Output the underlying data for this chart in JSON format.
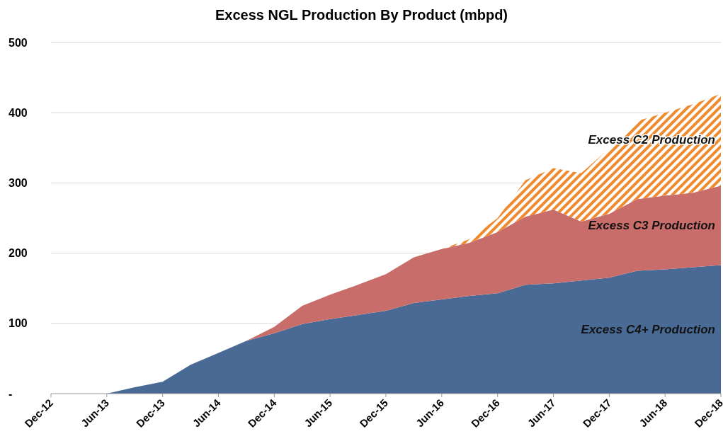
{
  "chart_data": {
    "type": "area",
    "title": "Excess NGL Production By Product (mbpd)",
    "stacked": true,
    "grid": "y",
    "categories": [
      "Dec-12",
      null,
      "Jun-13",
      null,
      "Dec-13",
      null,
      "Jun-14",
      null,
      "Dec-14",
      null,
      "Jun-15",
      null,
      "Dec-15",
      null,
      "Jun-16",
      null,
      "Dec-16",
      null,
      "Jun-17",
      null,
      "Dec-17",
      null,
      "Jun-18",
      null,
      "Dec-18"
    ],
    "ylim": [
      0,
      500
    ],
    "yticks": [
      {
        "value": 0,
        "label": "-"
      },
      100,
      200,
      300,
      400,
      500
    ],
    "series": [
      {
        "name": "Excess C4+ Production",
        "color": "#4a6a96",
        "values": [
          0,
          0,
          0,
          9,
          17,
          41,
          58,
          75,
          86,
          99,
          106,
          112,
          118,
          129,
          134,
          139,
          143,
          155,
          157,
          161,
          165,
          175,
          177,
          180,
          183
        ]
      },
      {
        "name": "Excess C3 Production",
        "color": "#c96d6a",
        "values": [
          0,
          0,
          0,
          0,
          0,
          0,
          0,
          0,
          9,
          26,
          35,
          43,
          52,
          65,
          72,
          76,
          87,
          97,
          105,
          84,
          91,
          102,
          105,
          106,
          113
        ]
      },
      {
        "name": "Excess C2 Production",
        "color": "#f08a2e",
        "values": [
          0,
          0,
          0,
          0,
          0,
          0,
          0,
          0,
          0,
          0,
          0,
          0,
          0,
          0,
          0,
          5,
          20,
          52,
          59,
          69,
          93,
          111,
          118,
          126,
          131
        ]
      }
    ]
  }
}
